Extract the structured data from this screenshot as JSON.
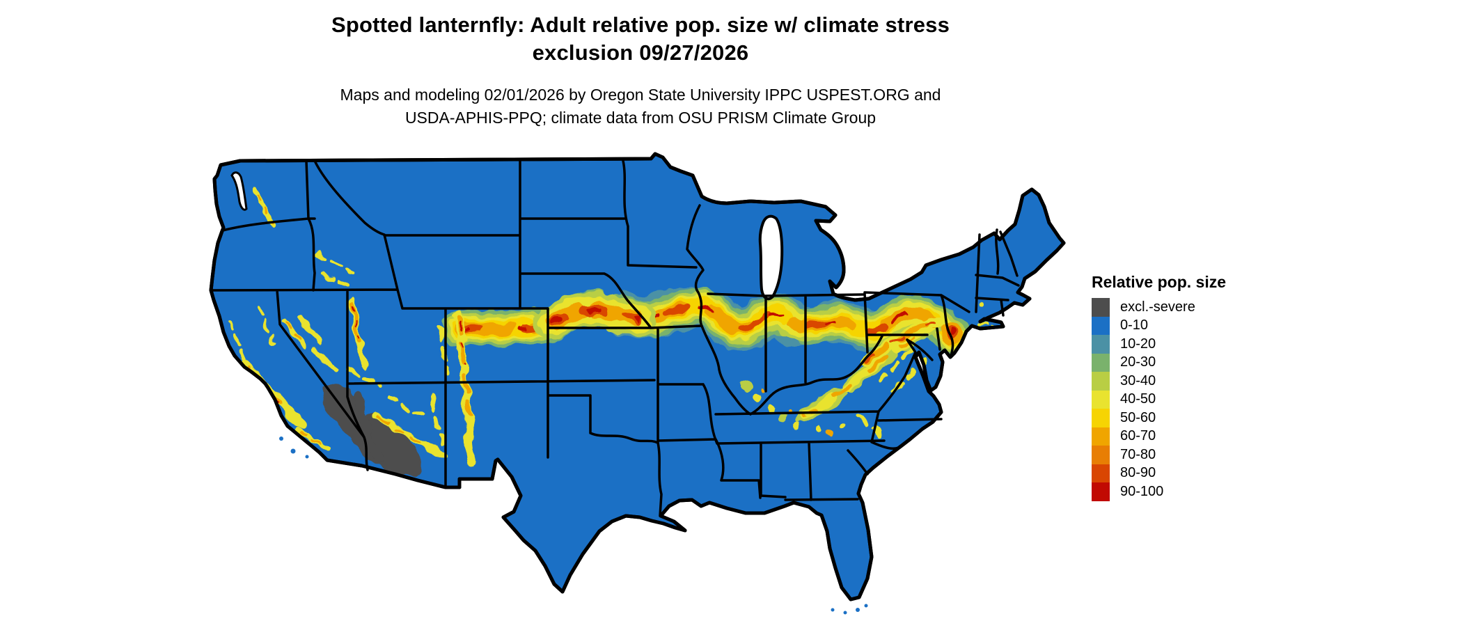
{
  "title": {
    "line1": "Spotted lanternfly: Adult relative pop. size w/ climate stress",
    "line2": "exclusion 09/27/2026"
  },
  "subtitle": {
    "line1": "Maps and modeling 02/01/2026 by Oregon State University IPPC USPEST.ORG and",
    "line2": "USDA-APHIS-PPQ; climate data from OSU PRISM Climate Group"
  },
  "legend": {
    "title": "Relative pop. size",
    "items": [
      {
        "label": "excl.-severe",
        "color": "#4d4d4d"
      },
      {
        "label": "0-10",
        "color": "#1b70c5"
      },
      {
        "label": "10-20",
        "color": "#4b91a5"
      },
      {
        "label": "20-30",
        "color": "#7ab26c"
      },
      {
        "label": "30-40",
        "color": "#b9ce44"
      },
      {
        "label": "40-50",
        "color": "#e9e32f"
      },
      {
        "label": "50-60",
        "color": "#f6d403"
      },
      {
        "label": "60-70",
        "color": "#f0a500"
      },
      {
        "label": "70-80",
        "color": "#e87e04"
      },
      {
        "label": "80-90",
        "color": "#d94602"
      },
      {
        "label": "90-100",
        "color": "#c10a02"
      }
    ]
  },
  "map": {
    "region": "Conterminous United States",
    "border_color": "#000000",
    "water_background": "#ffffff",
    "base_class": "0-10",
    "excluded_region": "Sonoran / Mojave desert (SW Arizona and SE California) shown as excl.-severe gray",
    "high_band": "Yellow-to-red band (40-100) from Nebraska/Kansas border through Iowa, Illinois, Indiana, Ohio into Pennsylvania and New Jersey; mountain chains of CA, NV, UT, CO, NM, AZ; Appalachians KY/TN/VA/WV"
  }
}
